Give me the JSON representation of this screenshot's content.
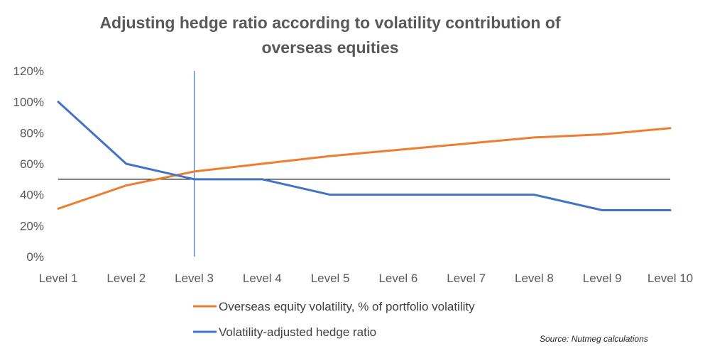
{
  "chart_data": {
    "type": "line",
    "title": "Adjusting hedge ratio according to volatility contribution of",
    "title_line2": "overseas equities",
    "categories": [
      "Level 1",
      "Level 2",
      "Level 3",
      "Level 4",
      "Level 5",
      "Level 6",
      "Level 7",
      "Level 8",
      "Level 9",
      "Level 10"
    ],
    "series": [
      {
        "name": "Overseas equity volatility, % of portfolio volatility",
        "color": "#ED7D31",
        "values": [
          31,
          46,
          55,
          60,
          65,
          69,
          73,
          77,
          79,
          83
        ]
      },
      {
        "name": "Volatility-adjusted hedge ratio",
        "color": "#4472C4",
        "values": [
          100,
          60,
          50,
          50,
          40,
          40,
          40,
          40,
          30,
          30
        ]
      }
    ],
    "y_ticks": [
      "0%",
      "20%",
      "40%",
      "60%",
      "80%",
      "100%",
      "120%"
    ],
    "ylim": [
      0,
      120
    ],
    "reference_line": {
      "y": 50,
      "color": "#000000"
    },
    "vertical_marker": {
      "category": "Level 3",
      "color": "#4472C4"
    },
    "grid": false,
    "legend_position": "bottom-left",
    "source": "Source: Nutmeg calculations"
  }
}
